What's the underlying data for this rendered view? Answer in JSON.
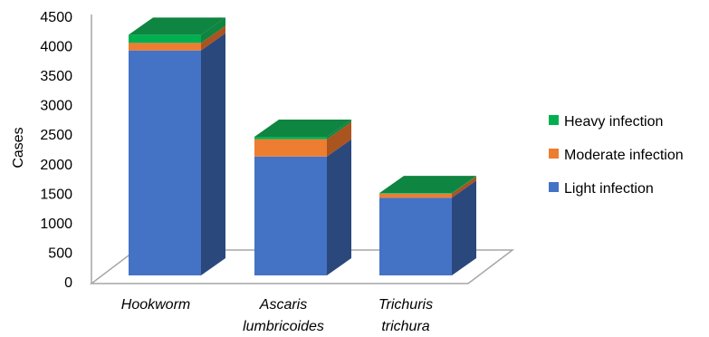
{
  "chart_data": {
    "type": "bar",
    "stacked": true,
    "style": "3d",
    "categories": [
      [
        "Hookworm"
      ],
      [
        "Ascaris",
        "lumbricoides"
      ],
      [
        "Trichuris",
        "trichura"
      ]
    ],
    "series": [
      {
        "name": "Light infection",
        "values": [
          3880,
          2050,
          1340
        ],
        "color": "#4472C4",
        "side_color": "#2B487D"
      },
      {
        "name": "Moderate infection",
        "values": [
          130,
          300,
          70
        ],
        "color": "#ED7D31",
        "side_color": "#AA5420"
      },
      {
        "name": "Heavy infection",
        "values": [
          140,
          40,
          10
        ],
        "color": "#00B050",
        "side_color": "#0E8540"
      }
    ],
    "top_color": "#0E8540",
    "ylabel": "Cases",
    "xlabel": "",
    "ylim": [
      0,
      4500
    ],
    "yticks": [
      "0",
      "500",
      "1000",
      "1500",
      "2000",
      "2500",
      "3000",
      "3500",
      "4000",
      "4500"
    ],
    "legend_position": "right",
    "legend_order": [
      "Heavy infection",
      "Moderate infection",
      "Light infection"
    ],
    "grid": false
  }
}
